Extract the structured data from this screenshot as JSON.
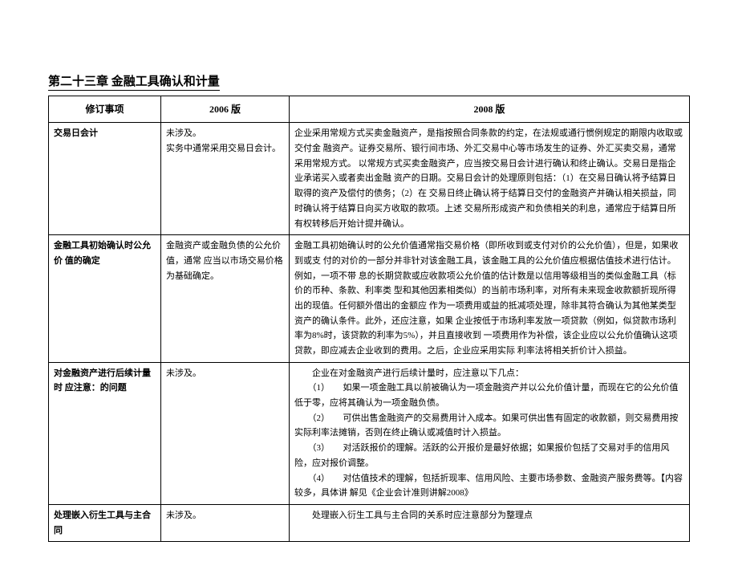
{
  "chapter_title": "第二十三章 金融工具确认和计量",
  "headers": {
    "item": "修订事项",
    "v2006": "2006 版",
    "v2008": "2008 版"
  },
  "rows": [
    {
      "item": "交易日会计",
      "v2006": "未涉及。\n实务中通常采用交易日会计。",
      "v2008": "企业采用常规方式买卖金融资产，是指按照合同条款的约定，在法规或通行惯例规定的期限内收取或交付金 融资产。证券交易所、银行间市场、外汇交易中心等市场发生的证券、外汇买卖交易，通常采用常规方式。 以常规方式买卖金融资产，应当按交易日会计进行确认和终止确认。交易日是指企业承诺买入或者卖出金融 资产的日期。交易日会计的处理原则包括：（1）在交易日确认将予结算日取得的资产及偿付的债务；（2）在 交易日终止确认将于结算日交付的金融资产并确认相关损益，同时确认将于结算日向买方收取的款项。上述 交易所形成资产和负债相关的利息，通常应于结算日所有权转移后开始计提并确认。"
    },
    {
      "item": "金融工具初始确认时公允价 值的确定",
      "v2006": "金融资产或金融负债的公允价值，通常 应当以市场交易价格为基础确定。",
      "v2008": "金融工具初始确认时的公允价值通常指交易价格（即所收到或支付对价的公允价值），但是，如果收到或支 付的对价的一部分并非针对该金融工具，该金融工具的公允价值应根据估值技术进行估计。例如，一项不带 息的长期贷款或应收款项公允价值的估计数是以信用等级相当的类似金融工具（标价的币种、条款、利率类 型和其他因素相类似）的当前市场利率，对所有未来现金收款额折现所得出的现值。任何额外借出的金额应 作为一项费用或益的抵减项处理，除非其符合确认为其他某类型资产的确认条件。此外，还应注意，如果 企业按低于市场利率发放一项贷款（例如，似贷款市场利率为8%时，该贷款的利率为5%），并且直接收到 一项费用作为补偿，该企业应以公允价值确认这项贷款，即应减去企业收到的费用。之后，企业应采用实际 利率法将相关折价计入损益。"
    },
    {
      "item": "对金融资产进行后续计量时 应注意：的问题",
      "v2006": "未涉及。",
      "v2008": "　　企业在对金融资产进行后续计量时，应注意以下几点：\n　　（1）　　如果一项金融工具以前被确认为一项金融资产并以公允价值计量，而现在它的公允价值低于零，应将其确认为一项金融负债。\n　　（2）　　可供出售金融资产的交易费用计入成本。如果可供出售有固定的收款额，则交易费用按实际利率法摊销，否则在终止确认或减值时计入损益。\n　　（3）　　对活跃报价的理解。活跃的公开报价是最好依据；如果报价包括了交易对手的信用风险，应对报价调整。\n　　（4）　　对估值技术的理解，包括折现率、信用风险、主要市场参数、金融资产服务费等。【内容较多，具体讲 解见《企业会计准则讲解2008》"
    },
    {
      "item": "处理嵌入衍生工具与主合同",
      "v2006": "未涉及。",
      "v2008": "　　处理嵌入衍生工具与主合同的关系时应注意部分为整理点"
    }
  ]
}
